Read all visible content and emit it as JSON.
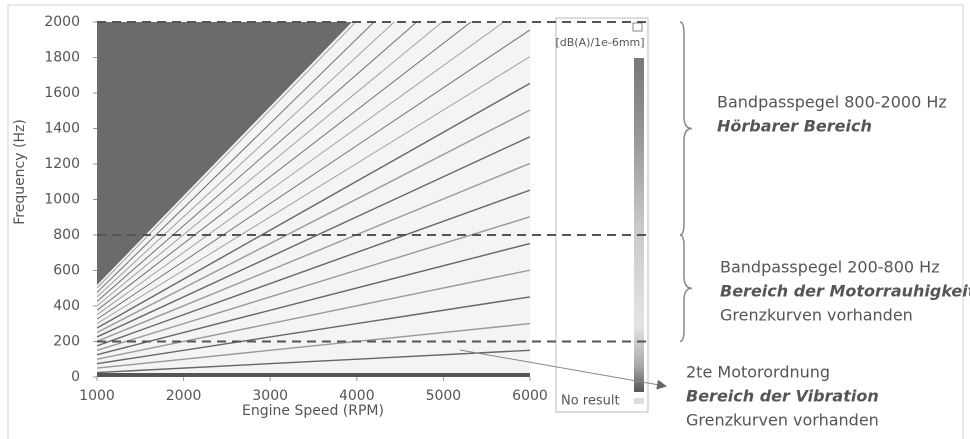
{
  "chart_data": {
    "type": "spectrogram",
    "x_label": "Engine Speed (RPM)",
    "y_label": "Frequency (Hz)",
    "xlim": [
      1000,
      6000
    ],
    "xticks": [
      1000,
      2000,
      3000,
      4000,
      5000,
      6000
    ],
    "ylim": [
      0,
      2000
    ],
    "yticks": [
      0,
      200,
      400,
      600,
      800,
      1000,
      1200,
      1400,
      1600,
      1800,
      2000
    ],
    "colorbar_label": "[dB(A)/1e-6mm]",
    "no_result_label": "No result",
    "reference_lines": [
      200,
      800,
      2000
    ],
    "annotations": [
      {
        "lines": [
          "Bandpasspegel 800-2000 Hz",
          "Hörbarer Bereich"
        ],
        "emphasis": 1
      },
      {
        "lines": [
          "Bandpasspegel 200-800 Hz",
          "Bereich der Motorrauhigkeit",
          "Grenzkurven vorhanden"
        ],
        "emphasis": 1
      },
      {
        "lines": [
          "2te Motorordnung",
          "Bereich der Vibration",
          "Grenzkurven vorhanden"
        ],
        "emphasis": 1
      }
    ]
  }
}
